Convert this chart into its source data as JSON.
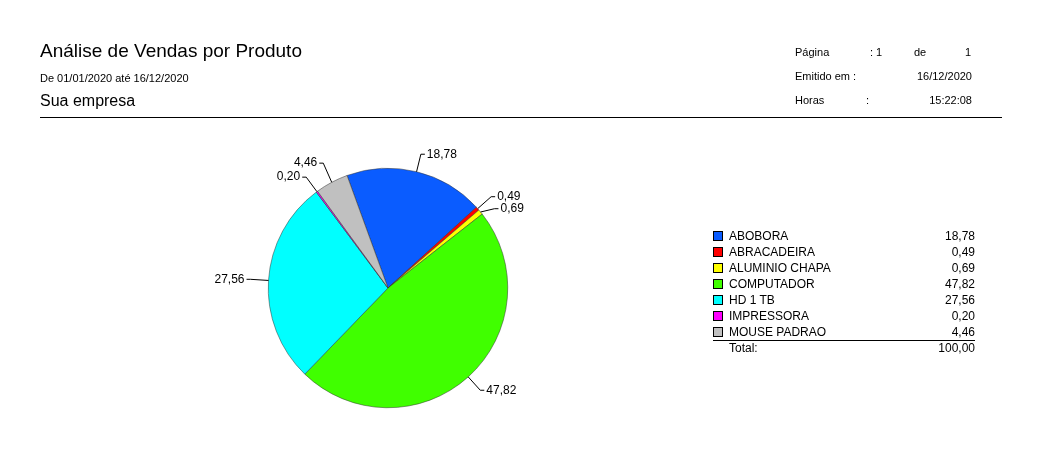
{
  "chart_data": {
    "type": "pie",
    "title": "Análise de Vendas por  Produto",
    "subtitle": "De 01/01/2020  até  16/12/2020",
    "annotations": [
      "Sua empresa",
      "Página",
      ": 1",
      "de",
      "1",
      "Emitido em :",
      "16/12/2020",
      "Horas",
      ":",
      "15:22:08",
      "Total:"
    ],
    "categories": [
      "ABOBORA",
      "ABRACADEIRA",
      "ALUMINIO CHAPA",
      "COMPUTADOR",
      "HD 1 TB",
      "IMPRESSORA",
      "MOUSE PADRAO"
    ],
    "values": [
      18.78,
      0.49,
      0.69,
      47.82,
      27.56,
      0.2,
      4.46
    ],
    "colors": [
      "#0a5cff",
      "#ff0000",
      "#ffff00",
      "#40ff00",
      "#00ffff",
      "#ff00ff",
      "#c0c0c0"
    ],
    "value_labels": [
      "18,78",
      "0,49",
      "0,69",
      "47,82",
      "27,56",
      "0,20",
      "4,46"
    ],
    "totals": [
      "100,00"
    ],
    "legend": "right"
  }
}
